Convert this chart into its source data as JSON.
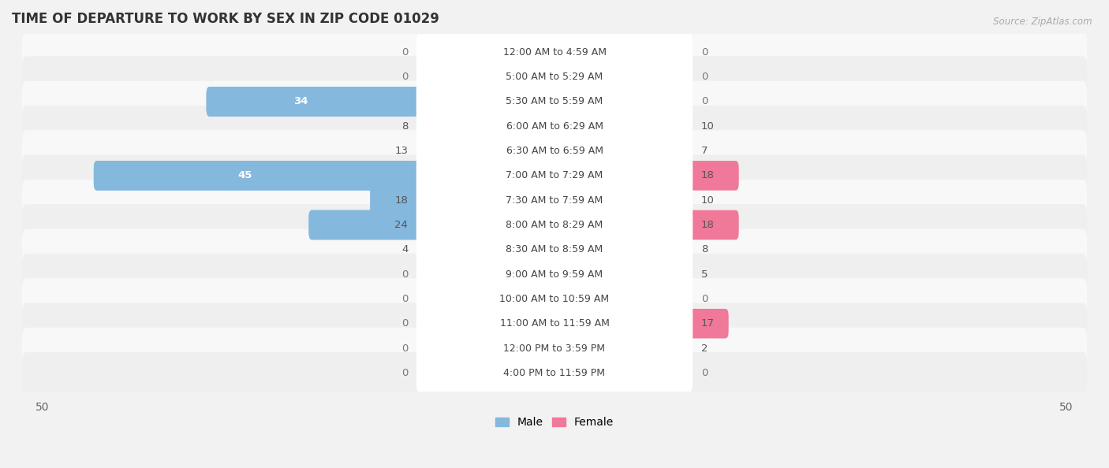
{
  "title": "TIME OF DEPARTURE TO WORK BY SEX IN ZIP CODE 01029",
  "source": "Source: ZipAtlas.com",
  "categories": [
    "12:00 AM to 4:59 AM",
    "5:00 AM to 5:29 AM",
    "5:30 AM to 5:59 AM",
    "6:00 AM to 6:29 AM",
    "6:30 AM to 6:59 AM",
    "7:00 AM to 7:29 AM",
    "7:30 AM to 7:59 AM",
    "8:00 AM to 8:29 AM",
    "8:30 AM to 8:59 AM",
    "9:00 AM to 9:59 AM",
    "10:00 AM to 10:59 AM",
    "11:00 AM to 11:59 AM",
    "12:00 PM to 3:59 PM",
    "4:00 PM to 11:59 PM"
  ],
  "male_values": [
    0,
    0,
    34,
    8,
    13,
    45,
    18,
    24,
    4,
    0,
    0,
    0,
    0,
    0
  ],
  "female_values": [
    0,
    0,
    0,
    10,
    7,
    18,
    10,
    18,
    8,
    5,
    0,
    17,
    2,
    0
  ],
  "male_color": "#85b8dd",
  "female_color": "#f07898",
  "male_color_dark": "#5a9ec8",
  "female_color_dark": "#e85878",
  "male_label": "Male",
  "female_label": "Female",
  "axis_max": 50,
  "bg_color": "#f2f2f2",
  "row_bg_odd": "#efefef",
  "row_bg_even": "#f8f8f8",
  "label_fontsize": 9.5,
  "title_fontsize": 12,
  "cat_fontsize": 9.0,
  "val_fontsize": 9.5
}
